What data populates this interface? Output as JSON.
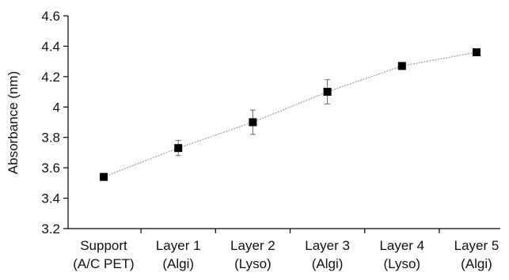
{
  "chart_data": {
    "type": "line",
    "ylabel": "Absorbance (nm)",
    "categories": [
      [
        "Support",
        "(A/C PET)"
      ],
      [
        "Layer 1",
        "(Algi)"
      ],
      [
        "Layer 2",
        "(Lyso)"
      ],
      [
        "Layer 3",
        "(Algi)"
      ],
      [
        "Layer 4",
        "(Lyso)"
      ],
      [
        "Layer 5",
        "(Algi)"
      ]
    ],
    "series": [
      {
        "values": [
          3.54,
          3.73,
          3.9,
          4.1,
          4.27,
          4.36
        ],
        "errors": [
          0.01,
          0.05,
          0.08,
          0.08,
          0.01,
          0.02
        ]
      }
    ],
    "ylim": [
      3.2,
      4.6
    ],
    "yticks": [
      3.2,
      3.4,
      3.6,
      3.8,
      4.0,
      4.2,
      4.4,
      4.6
    ],
    "ytick_labels": [
      "3.2",
      "3.4",
      "3.6",
      "3.8",
      "4",
      "4.2",
      "4.4",
      "4.6"
    ],
    "grid": false,
    "legend": "none",
    "colors": {
      "line": "#a0a0a0",
      "marker": "#000000",
      "axis": "#000000",
      "errorbar": "#666666"
    }
  }
}
